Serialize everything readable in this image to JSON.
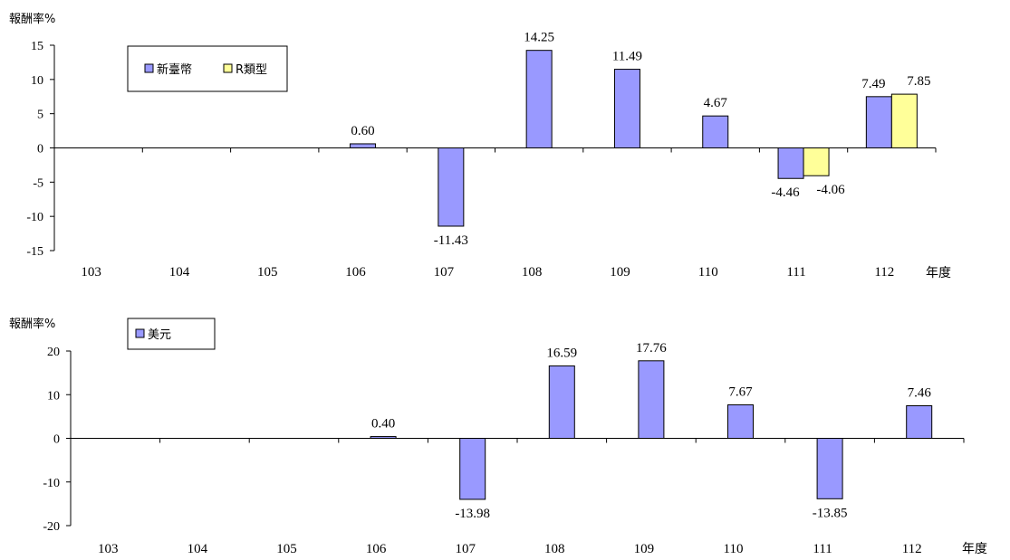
{
  "chart_data": [
    {
      "type": "bar",
      "ylabel": "報酬率%",
      "xunit": "年度",
      "categories": [
        "103",
        "104",
        "105",
        "106",
        "107",
        "108",
        "109",
        "110",
        "111",
        "112"
      ],
      "ylim": [
        -15,
        15
      ],
      "yticks": [
        15,
        10,
        5,
        0,
        -5,
        -10,
        -15
      ],
      "series": [
        {
          "name": "新臺幣",
          "color": "#9999ff",
          "values": [
            null,
            null,
            null,
            0.6,
            -11.43,
            14.25,
            11.49,
            4.67,
            -4.46,
            7.49
          ],
          "labels": [
            "",
            "",
            "",
            "0.60",
            "-11.43",
            "14.25",
            "11.49",
            "4.67",
            "-4.46",
            "7.49"
          ]
        },
        {
          "name": "R類型",
          "color": "#ffff99",
          "values": [
            null,
            null,
            null,
            null,
            null,
            null,
            null,
            null,
            -4.06,
            7.85
          ],
          "labels": [
            "",
            "",
            "",
            "",
            "",
            "",
            "",
            "",
            "-4.06",
            "7.85"
          ]
        }
      ],
      "legend": "top-left"
    },
    {
      "type": "bar",
      "ylabel": "報酬率%",
      "xunit": "年度",
      "categories": [
        "103",
        "104",
        "105",
        "106",
        "107",
        "108",
        "109",
        "110",
        "111",
        "112"
      ],
      "ylim": [
        -20,
        20
      ],
      "yticks": [
        20,
        10,
        0,
        -10,
        -20
      ],
      "series": [
        {
          "name": "美元",
          "color": "#9999ff",
          "values": [
            null,
            null,
            null,
            0.4,
            -13.98,
            16.59,
            17.76,
            7.67,
            -13.85,
            7.46
          ],
          "labels": [
            "",
            "",
            "",
            "0.40",
            "-13.98",
            "16.59",
            "17.76",
            "7.67",
            "-13.85",
            "7.46"
          ]
        }
      ],
      "legend": "top-left"
    }
  ]
}
